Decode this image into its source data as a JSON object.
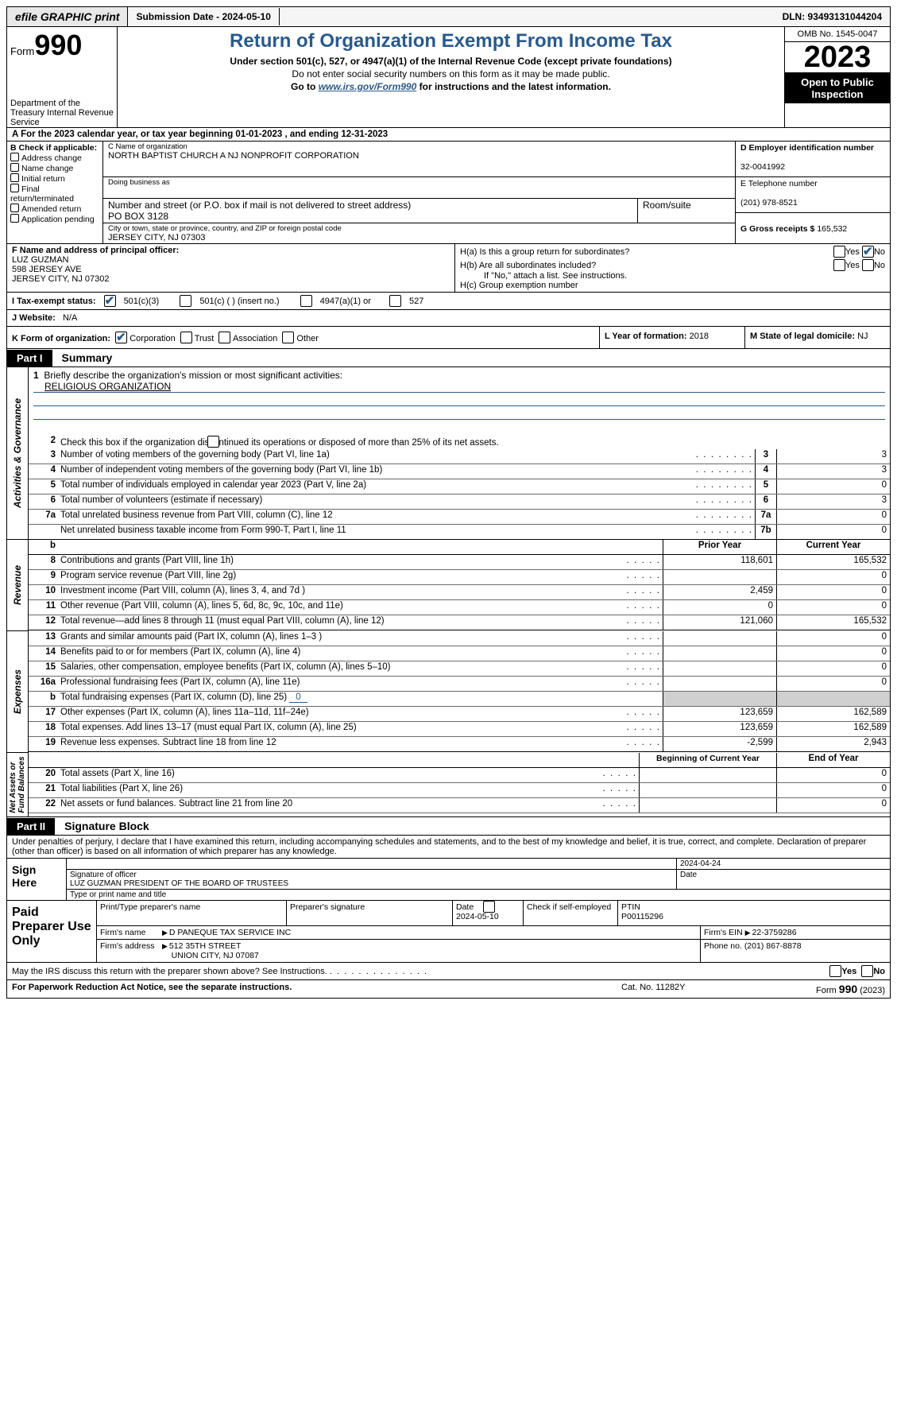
{
  "topbar": {
    "efile": "efile GRAPHIC print",
    "submission": "Submission Date - 2024-05-10",
    "dln": "DLN: 93493131044204"
  },
  "header": {
    "form_label": "Form",
    "form_num": "990",
    "dept": "Department of the Treasury Internal Revenue Service",
    "title": "Return of Organization Exempt From Income Tax",
    "sub1": "Under section 501(c), 527, or 4947(a)(1) of the Internal Revenue Code (except private foundations)",
    "sub2": "Do not enter social security numbers on this form as it may be made public.",
    "sub3_pre": "Go to ",
    "sub3_link": "www.irs.gov/Form990",
    "sub3_post": " for instructions and the latest information.",
    "omb": "OMB No. 1545-0047",
    "year": "2023",
    "open": "Open to Public Inspection"
  },
  "row_a": "A  For the 2023 calendar year, or tax year beginning 01-01-2023   , and ending 12-31-2023",
  "col_b": {
    "label": "B Check if applicable:",
    "opts": [
      "Address change",
      "Name change",
      "Initial return",
      "Final return/terminated",
      "Amended return",
      "Application pending"
    ]
  },
  "col_c": {
    "name_lbl": "C Name of organization",
    "name": "NORTH BAPTIST CHURCH A NJ NONPROFIT CORPORATION",
    "dba_lbl": "Doing business as",
    "street_lbl": "Number and street (or P.O. box if mail is not delivered to street address)",
    "room_lbl": "Room/suite",
    "street": "PO BOX 3128",
    "city_lbl": "City or town, state or province, country, and ZIP or foreign postal code",
    "city": "JERSEY CITY, NJ  07303"
  },
  "col_de": {
    "d_lbl": "D Employer identification number",
    "d_val": "32-0041992",
    "e_lbl": "E Telephone number",
    "e_val": "(201) 978-8521",
    "g_lbl": "G Gross receipts $",
    "g_val": "165,532"
  },
  "row_f": {
    "lbl": "F  Name and address of principal officer:",
    "line1": "LUZ GUZMAN",
    "line2": "598 JERSEY AVE",
    "line3": "JERSEY CITY, NJ  07302"
  },
  "row_h": {
    "ha": "H(a)  Is this a group return for subordinates?",
    "hb": "H(b)  Are all subordinates included?",
    "hb_note": "If \"No,\" attach a list. See instructions.",
    "hc": "H(c)  Group exemption number",
    "yes": "Yes",
    "no": "No"
  },
  "row_i": {
    "lbl": "I   Tax-exempt status:",
    "c3": "501(c)(3)",
    "c": "501(c) (  ) (insert no.)",
    "a1": "4947(a)(1) or",
    "s527": "527"
  },
  "row_j": {
    "lbl": "J   Website:",
    "val": "N/A"
  },
  "row_k": {
    "lbl": "K Form of organization:",
    "corp": "Corporation",
    "trust": "Trust",
    "assoc": "Association",
    "other": "Other"
  },
  "row_l": {
    "lbl": "L Year of formation:",
    "val": "2018"
  },
  "row_m": {
    "lbl": "M State of legal domicile:",
    "val": "NJ"
  },
  "part1": {
    "tag": "Part I",
    "title": "Summary"
  },
  "mission": {
    "lbl": "Briefly describe the organization's mission or most significant activities:",
    "val": "RELIGIOUS ORGANIZATION"
  },
  "line2": "Check this box         if the organization discontinued its operations or disposed of more than 25% of its net assets.",
  "gov_lines": [
    {
      "n": "3",
      "d": "Number of voting members of the governing body (Part VI, line 1a)",
      "box": "3",
      "v": "3"
    },
    {
      "n": "4",
      "d": "Number of independent voting members of the governing body (Part VI, line 1b)",
      "box": "4",
      "v": "3"
    },
    {
      "n": "5",
      "d": "Total number of individuals employed in calendar year 2023 (Part V, line 2a)",
      "box": "5",
      "v": "0"
    },
    {
      "n": "6",
      "d": "Total number of volunteers (estimate if necessary)",
      "box": "6",
      "v": "3"
    },
    {
      "n": "7a",
      "d": "Total unrelated business revenue from Part VIII, column (C), line 12",
      "box": "7a",
      "v": "0"
    },
    {
      "n": "",
      "d": "Net unrelated business taxable income from Form 990-T, Part I, line 11",
      "box": "7b",
      "v": "0"
    }
  ],
  "col_hdrs": {
    "prior": "Prior Year",
    "curr": "Current Year",
    "begin": "Beginning of Current Year",
    "end": "End of Year"
  },
  "rev_lines": [
    {
      "n": "8",
      "d": "Contributions and grants (Part VIII, line 1h)",
      "p": "118,601",
      "c": "165,532"
    },
    {
      "n": "9",
      "d": "Program service revenue (Part VIII, line 2g)",
      "p": "",
      "c": "0"
    },
    {
      "n": "10",
      "d": "Investment income (Part VIII, column (A), lines 3, 4, and 7d )",
      "p": "2,459",
      "c": "0"
    },
    {
      "n": "11",
      "d": "Other revenue (Part VIII, column (A), lines 5, 6d, 8c, 9c, 10c, and 11e)",
      "p": "0",
      "c": "0"
    },
    {
      "n": "12",
      "d": "Total revenue—add lines 8 through 11 (must equal Part VIII, column (A), line 12)",
      "p": "121,060",
      "c": "165,532"
    }
  ],
  "exp_lines": [
    {
      "n": "13",
      "d": "Grants and similar amounts paid (Part IX, column (A), lines 1–3 )",
      "p": "",
      "c": "0"
    },
    {
      "n": "14",
      "d": "Benefits paid to or for members (Part IX, column (A), line 4)",
      "p": "",
      "c": "0"
    },
    {
      "n": "15",
      "d": "Salaries, other compensation, employee benefits (Part IX, column (A), lines 5–10)",
      "p": "",
      "c": "0"
    },
    {
      "n": "16a",
      "d": "Professional fundraising fees (Part IX, column (A), line 11e)",
      "p": "",
      "c": "0"
    }
  ],
  "exp_b": {
    "n": "b",
    "d": "Total fundraising expenses (Part IX, column (D), line 25)",
    "v": "0"
  },
  "exp_lines2": [
    {
      "n": "17",
      "d": "Other expenses (Part IX, column (A), lines 11a–11d, 11f–24e)",
      "p": "123,659",
      "c": "162,589"
    },
    {
      "n": "18",
      "d": "Total expenses. Add lines 13–17 (must equal Part IX, column (A), line 25)",
      "p": "123,659",
      "c": "162,589"
    },
    {
      "n": "19",
      "d": "Revenue less expenses. Subtract line 18 from line 12",
      "p": "-2,599",
      "c": "2,943"
    }
  ],
  "na_lines": [
    {
      "n": "20",
      "d": "Total assets (Part X, line 16)",
      "p": "",
      "c": "0"
    },
    {
      "n": "21",
      "d": "Total liabilities (Part X, line 26)",
      "p": "",
      "c": "0"
    },
    {
      "n": "22",
      "d": "Net assets or fund balances. Subtract line 21 from line 20",
      "p": "",
      "c": "0"
    }
  ],
  "part2": {
    "tag": "Part II",
    "title": "Signature Block"
  },
  "sig": {
    "decl": "Under penalties of perjury, I declare that I have examined this return, including accompanying schedules and statements, and to the best of my knowledge and belief, it is true, correct, and complete. Declaration of preparer (other than officer) is based on all information of which preparer has any knowledge.",
    "sign_here": "Sign Here",
    "date": "2024-04-24",
    "sig_lbl": "Signature of officer",
    "date_lbl": "Date",
    "name": "LUZ GUZMAN  PRESIDENT OF THE BOARD OF TRUSTEES",
    "name_lbl": "Type or print name and title"
  },
  "prep": {
    "title": "Paid Preparer Use Only",
    "h1": "Print/Type preparer's name",
    "h2": "Preparer's signature",
    "h3": "Date",
    "h3v": "2024-05-10",
    "h4": "Check          if self-employed",
    "h5": "PTIN",
    "h5v": "P00115296",
    "r1l": "Firm's name",
    "r1v": "D PANEQUE TAX SERVICE INC",
    "r1r": "Firm's EIN",
    "r1rv": "22-3759286",
    "r2l": "Firm's address",
    "r2v1": "512 35TH STREET",
    "r2v2": "UNION CITY, NJ  07087",
    "r2r": "Phone no.",
    "r2rv": "(201) 867-8878"
  },
  "footer": {
    "q": "May the IRS discuss this return with the preparer shown above? See Instructions.",
    "yes": "Yes",
    "no": "No",
    "pra": "For Paperwork Reduction Act Notice, see the separate instructions.",
    "cat": "Cat. No. 11282Y",
    "form": "Form 990 (2023)"
  }
}
